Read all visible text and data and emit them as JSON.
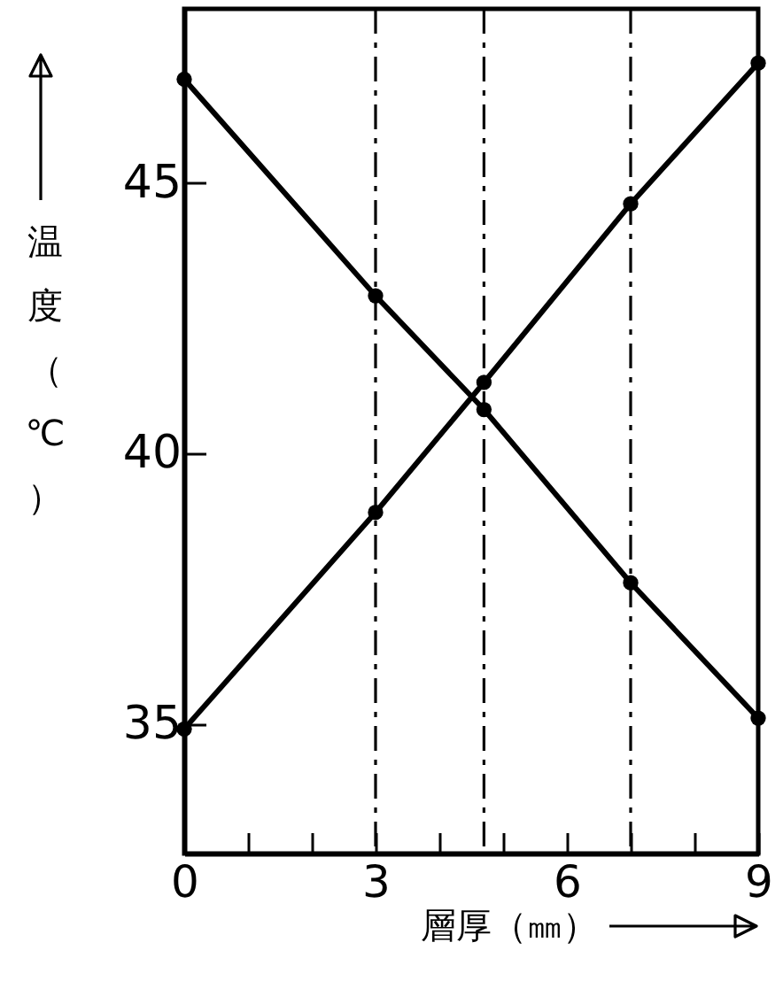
{
  "chart_data": {
    "type": "line",
    "xlabel": "層厚（㎜）",
    "ylabel": "温度（℃）",
    "x": [
      0,
      3,
      4.7,
      7,
      9
    ],
    "series": [
      {
        "color": "#000000",
        "values": [
          46.9,
          42.9,
          40.8,
          37.6,
          35.1
        ]
      },
      {
        "color": "#000000",
        "values": [
          34.9,
          38.9,
          41.3,
          44.6,
          47.2
        ]
      }
    ],
    "xlim": [
      0,
      9
    ],
    "xticks": [
      0,
      {
        "value": 1,
        "label": null
      },
      {
        "value": 2,
        "label": null
      },
      3,
      {
        "value": 4,
        "label": null
      },
      {
        "value": 5,
        "label": null
      },
      6,
      {
        "value": 7,
        "label": null
      },
      {
        "value": 8,
        "label": null
      },
      9
    ],
    "ylim": [
      32.6,
      48.2
    ],
    "yticks": [
      35,
      40,
      45
    ],
    "ref_lines": [
      {
        "axis": "x",
        "value": 3,
        "line_style": "dashed",
        "color": "#000000"
      },
      {
        "axis": "x",
        "value": 4.7,
        "line_style": "dashed",
        "color": "#000000"
      },
      {
        "axis": "x",
        "value": 7,
        "line_style": "dashed",
        "color": "#000000"
      }
    ],
    "grid": false,
    "marker": "circle",
    "line_style": "solid"
  }
}
